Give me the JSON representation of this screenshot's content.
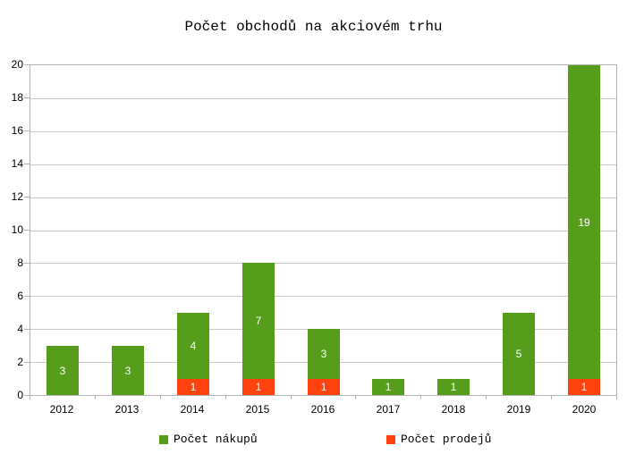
{
  "chart_data": {
    "type": "bar",
    "stacked": true,
    "title": "Počet obchodů na akciovém trhu",
    "categories": [
      "2012",
      "2013",
      "2014",
      "2015",
      "2016",
      "2017",
      "2018",
      "2019",
      "2020"
    ],
    "series": [
      {
        "name": "Počet prodejů",
        "color": "#FF420E",
        "values": [
          0,
          0,
          1,
          1,
          1,
          0,
          0,
          0,
          1
        ]
      },
      {
        "name": "Počet nákupů",
        "color": "#579D1C",
        "values": [
          3,
          3,
          4,
          7,
          3,
          1,
          1,
          5,
          19
        ]
      }
    ],
    "totals": [
      3,
      3,
      5,
      8,
      4,
      1,
      1,
      5,
      20
    ],
    "legend": [
      {
        "label": "Počet nákupů",
        "color": "#579D1C"
      },
      {
        "label": "Počet prodejů",
        "color": "#FF420E"
      }
    ],
    "legend_position": "bottom",
    "xlabel": "",
    "ylabel": "",
    "ylim": [
      0,
      20
    ],
    "ytick_step": 2,
    "yticks": [
      "0",
      "2",
      "4",
      "6",
      "8",
      "10",
      "12",
      "14",
      "16",
      "18",
      "20"
    ],
    "grid": true,
    "bar_value_label_color": "#FFFFFF"
  },
  "colors": {
    "background": "#FFFFFF",
    "axis_frame": "#B3B3B3",
    "gridline": "#C9C9C9",
    "text": "#000000"
  }
}
